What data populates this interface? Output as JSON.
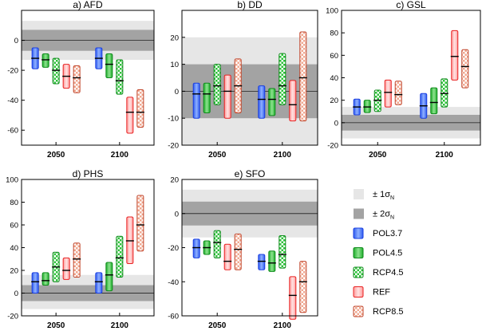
{
  "chart_data": [
    {
      "panel": "a",
      "title": "a) AFD",
      "type": "range-bar",
      "ylim": [
        -70,
        20
      ],
      "yticks": [
        -60,
        -40,
        -20,
        0
      ],
      "band_2sigma": [
        -7,
        7
      ],
      "band_1sigma": [
        -13,
        13
      ],
      "categories": [
        "2050",
        "2100"
      ],
      "series": [
        {
          "name": "POL3.7",
          "ranges": [
            [
              -19,
              -5
            ],
            [
              -19,
              -5
            ]
          ],
          "medians": [
            -12,
            -12
          ]
        },
        {
          "name": "POL4.5",
          "ranges": [
            [
              -18,
              -9
            ],
            [
              -25,
              -9
            ]
          ],
          "medians": [
            -13,
            -16
          ]
        },
        {
          "name": "RCP4.5",
          "ranges": [
            [
              -29,
              -12
            ],
            [
              -36,
              -13
            ]
          ],
          "medians": [
            -20,
            -27
          ]
        },
        {
          "name": "REF",
          "ranges": [
            [
              -32,
              -16
            ],
            [
              -62,
              -38
            ]
          ],
          "medians": [
            -24,
            -48
          ]
        },
        {
          "name": "RCP8.5",
          "ranges": [
            [
              -35,
              -17
            ],
            [
              -58,
              -33
            ]
          ],
          "medians": [
            -25,
            -48
          ]
        }
      ]
    },
    {
      "panel": "b",
      "title": "b) DD",
      "type": "range-bar",
      "ylim": [
        -20,
        30
      ],
      "yticks": [
        -20,
        -10,
        0,
        10,
        20
      ],
      "band_2sigma": [
        -10,
        10
      ],
      "band_1sigma": [
        -20,
        20
      ],
      "categories": [
        "2050",
        "2100"
      ],
      "series": [
        {
          "name": "POL3.7",
          "ranges": [
            [
              -10,
              3
            ],
            [
              -10,
              2
            ]
          ],
          "medians": [
            -1,
            -3
          ]
        },
        {
          "name": "POL4.5",
          "ranges": [
            [
              -8,
              3
            ],
            [
              -9,
              1
            ]
          ],
          "medians": [
            -1,
            -3
          ]
        },
        {
          "name": "RCP4.5",
          "ranges": [
            [
              -5,
              10
            ],
            [
              -5,
              14
            ]
          ],
          "medians": [
            2,
            2
          ]
        },
        {
          "name": "REF",
          "ranges": [
            [
              -10,
              6
            ],
            [
              -11,
              4
            ]
          ],
          "medians": [
            0,
            -5
          ]
        },
        {
          "name": "RCP8.5",
          "ranges": [
            [
              -8,
              12
            ],
            [
              -11,
              22
            ]
          ],
          "medians": [
            2,
            5
          ]
        }
      ]
    },
    {
      "panel": "c",
      "title": "c) GSL",
      "type": "range-bar",
      "ylim": [
        -20,
        100
      ],
      "yticks": [
        -20,
        0,
        20,
        40,
        60,
        80,
        100
      ],
      "band_2sigma": [
        -7,
        7
      ],
      "band_1sigma": [
        -14,
        14
      ],
      "categories": [
        "2050",
        "2100"
      ],
      "series": [
        {
          "name": "POL3.7",
          "ranges": [
            [
              7,
              21
            ],
            [
              4,
              26
            ]
          ],
          "medians": [
            14,
            15
          ]
        },
        {
          "name": "POL4.5",
          "ranges": [
            [
              9,
              20
            ],
            [
              8,
              31
            ]
          ],
          "medians": [
            14,
            18
          ]
        },
        {
          "name": "RCP4.5",
          "ranges": [
            [
              10,
              29
            ],
            [
              14,
              39
            ]
          ],
          "medians": [
            20,
            26
          ]
        },
        {
          "name": "REF",
          "ranges": [
            [
              14,
              38
            ],
            [
              38,
              82
            ]
          ],
          "medians": [
            27,
            59
          ]
        },
        {
          "name": "RCP8.5",
          "ranges": [
            [
              16,
              37
            ],
            [
              31,
              65
            ]
          ],
          "medians": [
            25,
            50
          ]
        }
      ]
    },
    {
      "panel": "d",
      "title": "d) PHS",
      "type": "range-bar",
      "ylim": [
        -20,
        100
      ],
      "yticks": [
        -20,
        0,
        20,
        40,
        60,
        80,
        100
      ],
      "band_2sigma": [
        -7,
        7
      ],
      "band_1sigma": [
        -14,
        16
      ],
      "categories": [
        "2050",
        "2100"
      ],
      "series": [
        {
          "name": "POL3.7",
          "ranges": [
            [
              0,
              18
            ],
            [
              0,
              18
            ]
          ],
          "medians": [
            10,
            10
          ]
        },
        {
          "name": "POL4.5",
          "ranges": [
            [
              7,
              18
            ],
            [
              2,
              27
            ]
          ],
          "medians": [
            11,
            16
          ]
        },
        {
          "name": "RCP4.5",
          "ranges": [
            [
              10,
              36
            ],
            [
              14,
              50
            ]
          ],
          "medians": [
            23,
            31
          ]
        },
        {
          "name": "REF",
          "ranges": [
            [
              12,
              31
            ],
            [
              26,
              67
            ]
          ],
          "medians": [
            20,
            46
          ]
        },
        {
          "name": "RCP8.5",
          "ranges": [
            [
              14,
              44
            ],
            [
              37,
              86
            ]
          ],
          "medians": [
            30,
            60
          ]
        }
      ]
    },
    {
      "panel": "e",
      "title": "e) SFO",
      "type": "range-bar",
      "ylim": [
        -60,
        20
      ],
      "yticks": [
        -60,
        -40,
        -20,
        0,
        20
      ],
      "band_2sigma": [
        -7,
        7
      ],
      "band_1sigma": [
        -14,
        14
      ],
      "categories": [
        "2050",
        "2100"
      ],
      "series": [
        {
          "name": "POL3.7",
          "ranges": [
            [
              -26,
              -15
            ],
            [
              -33,
              -24
            ]
          ],
          "medians": [
            -20,
            -28
          ]
        },
        {
          "name": "POL4.5",
          "ranges": [
            [
              -24,
              -16
            ],
            [
              -34,
              -22
            ]
          ],
          "medians": [
            -20,
            -29
          ]
        },
        {
          "name": "RCP4.5",
          "ranges": [
            [
              -26,
              -10
            ],
            [
              -32,
              -13
            ]
          ],
          "medians": [
            -17,
            -24
          ]
        },
        {
          "name": "REF",
          "ranges": [
            [
              -33,
              -18
            ],
            [
              -62,
              -37
            ]
          ],
          "medians": [
            -28,
            -48
          ]
        },
        {
          "name": "RCP8.5",
          "ranges": [
            [
              -33,
              -12
            ],
            [
              -58,
              -28
            ]
          ],
          "medians": [
            -21,
            -40
          ]
        }
      ]
    }
  ],
  "legend": {
    "items": [
      {
        "key": "sigma1",
        "prefix": "± 1σ",
        "sub": "N"
      },
      {
        "key": "sigma2",
        "prefix": "± 2σ",
        "sub": "N"
      },
      {
        "key": "POL3.7",
        "label": "POL3.7"
      },
      {
        "key": "POL4.5",
        "label": "POL4.5"
      },
      {
        "key": "RCP4.5",
        "label": "RCP4.5"
      },
      {
        "key": "REF",
        "label": "REF"
      },
      {
        "key": "RCP8.5",
        "label": "RCP8.5"
      }
    ]
  },
  "colors": {
    "POL3.7": "#3a6cff",
    "POL4.5": "#2ec23a",
    "RCP4.5": "#2e9a36",
    "REF": "#ff5a5a",
    "RCP8.5": "#d97a5a",
    "band_1sigma": "#e6e6e6",
    "band_2sigma": "#a3a3a3"
  }
}
